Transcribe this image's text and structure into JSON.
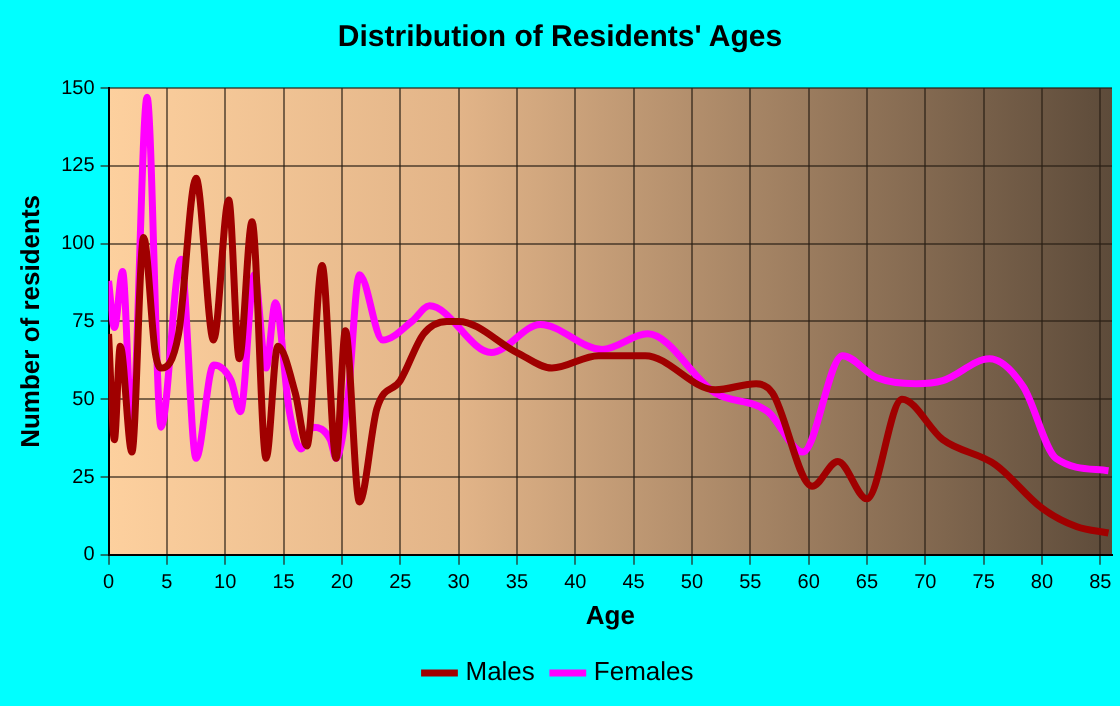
{
  "chart_data": {
    "type": "line",
    "title": "Distribution of Residents' Ages",
    "xlabel": "Age",
    "ylabel": "Number of residents",
    "xlim": [
      0,
      86
    ],
    "xticks": [
      0,
      5,
      10,
      15,
      20,
      25,
      30,
      35,
      40,
      45,
      50,
      55,
      60,
      65,
      70,
      75,
      80,
      85
    ],
    "ylim": [
      0,
      150
    ],
    "yticks": [
      0,
      25,
      50,
      75,
      100,
      125,
      150
    ],
    "grid": true,
    "legend": "bottom",
    "marker": "none",
    "line_style": "solid",
    "series": [
      {
        "name": "Males",
        "color": "#a00000",
        "x": [
          0,
          0.5,
          1,
          2,
          3,
          4,
          4.5,
          6,
          7.5,
          9,
          10.3,
          11.2,
          12.3,
          13.5,
          14.5,
          16,
          17,
          18.3,
          19.5,
          20.3,
          21.5,
          23,
          25,
          27,
          29,
          30,
          35,
          38,
          42,
          46,
          52,
          55.5,
          56.9,
          60.3,
          62.5,
          65,
          68,
          71.5,
          76,
          80,
          83,
          85.7
        ],
        "values": [
          71,
          37,
          67,
          33,
          102,
          65,
          60,
          71,
          121,
          69,
          114,
          63,
          107,
          31,
          67,
          52,
          35,
          93,
          31,
          72,
          17,
          47,
          56,
          71,
          75,
          75,
          65,
          60,
          64,
          64,
          53,
          55,
          52,
          22,
          30,
          18,
          50,
          37,
          29,
          15,
          9,
          7
        ]
      },
      {
        "name": "Females",
        "color": "#ff00ff",
        "x": [
          0,
          0.5,
          1.2,
          2,
          3.3,
          4.5,
          6.2,
          7.5,
          9,
          10.5,
          11.3,
          12.5,
          13.5,
          14.3,
          15.5,
          16.5,
          17.5,
          19,
          19.5,
          20.5,
          21.5,
          23.5,
          26,
          27.5,
          32.8,
          37,
          42.3,
          46.2,
          52,
          56.5,
          59.5,
          62.9,
          65.8,
          69.2,
          71.5,
          75.5,
          78.4,
          81.2,
          85.7
        ],
        "values": [
          88,
          73,
          91,
          41,
          147,
          41,
          95,
          31,
          61,
          56,
          46,
          90,
          60,
          81,
          46,
          34,
          41,
          37,
          31,
          50,
          90,
          69,
          75,
          80,
          65,
          74,
          66,
          71,
          52,
          46,
          33,
          64,
          57,
          55,
          56,
          63,
          54,
          31,
          27
        ]
      }
    ]
  }
}
